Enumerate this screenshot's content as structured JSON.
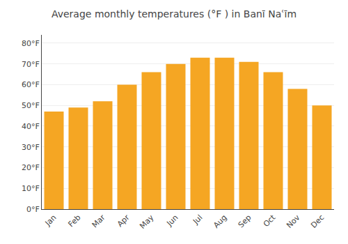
{
  "chart_data": {
    "type": "bar",
    "title": "Average monthly temperatures (°F ) in Banī Naʿīm",
    "categories": [
      "Jan",
      "Feb",
      "Mar",
      "Apr",
      "May",
      "Jun",
      "Jul",
      "Aug",
      "Sep",
      "Oct",
      "Nov",
      "Dec"
    ],
    "values": [
      47,
      49,
      52,
      60,
      66,
      70,
      73,
      73,
      71,
      66,
      58,
      50
    ],
    "color": "#F5A623",
    "ylim": [
      0,
      84
    ],
    "yticks": [
      {
        "value": 0,
        "label": "0°F"
      },
      {
        "value": 10,
        "label": "10°F"
      },
      {
        "value": 20,
        "label": "20°F"
      },
      {
        "value": 30,
        "label": "30°F"
      },
      {
        "value": 40,
        "label": "40°F"
      },
      {
        "value": 50,
        "label": "50°F"
      },
      {
        "value": 60,
        "label": "60°F"
      },
      {
        "value": 70,
        "label": "70°F"
      },
      {
        "value": 80,
        "label": "80°F"
      }
    ],
    "grid": true
  }
}
